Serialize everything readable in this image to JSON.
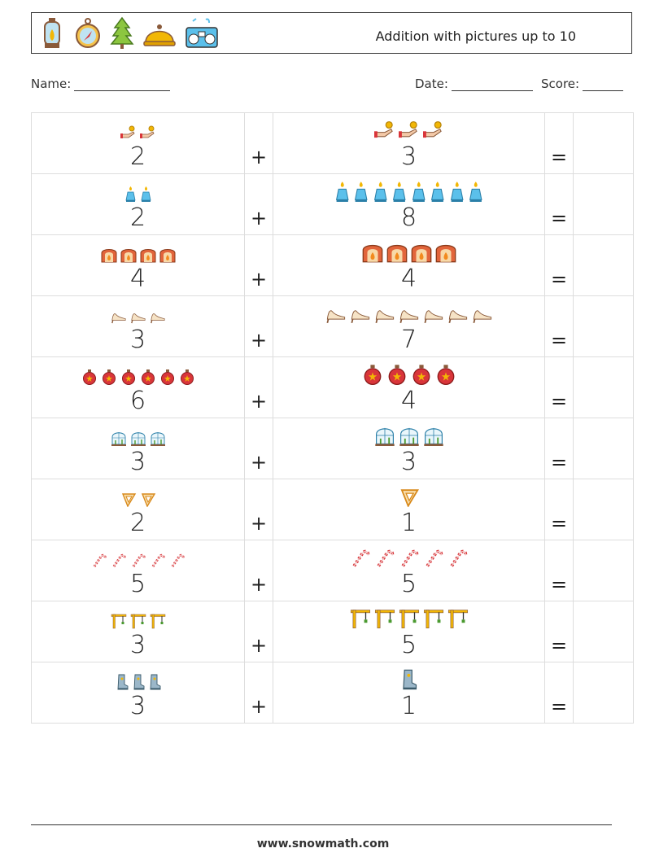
{
  "header": {
    "title": "Addition with pictures up to 10",
    "icons": [
      "lantern-icon",
      "compass-icon",
      "pine-tree-icon",
      "bell-icon",
      "boombox-icon"
    ]
  },
  "fields": {
    "name_label": "Name:",
    "date_label": "Date:",
    "score_label": "Score:"
  },
  "problems": [
    {
      "a": "2",
      "b": "3",
      "picture": "hand-coin-icon",
      "op": "+",
      "eq": "="
    },
    {
      "a": "2",
      "b": "8",
      "picture": "candle-icon",
      "op": "+",
      "eq": "="
    },
    {
      "a": "4",
      "b": "4",
      "picture": "fireplace-icon",
      "op": "+",
      "eq": "="
    },
    {
      "a": "3",
      "b": "7",
      "picture": "high-heel-icon",
      "op": "+",
      "eq": "="
    },
    {
      "a": "6",
      "b": "4",
      "picture": "ornament-ball-icon",
      "op": "+",
      "eq": "="
    },
    {
      "a": "3",
      "b": "3",
      "picture": "greenhouse-icon",
      "op": "+",
      "eq": "="
    },
    {
      "a": "2",
      "b": "1",
      "picture": "protractor-icon",
      "op": "+",
      "eq": "="
    },
    {
      "a": "5",
      "b": "5",
      "picture": "candy-cane-icon",
      "op": "+",
      "eq": "="
    },
    {
      "a": "3",
      "b": "5",
      "picture": "crane-icon",
      "op": "+",
      "eq": "="
    },
    {
      "a": "3",
      "b": "1",
      "picture": "boot-icon",
      "op": "+",
      "eq": "="
    }
  ],
  "footer": {
    "url": "www.snowmath.com"
  },
  "colors": {
    "candle": "#5bc0eb",
    "fireplace": "#e2653b",
    "ornament": "#d9353a",
    "candy": "#d9353a",
    "crane": "#f2b705",
    "boot": "#9bb7c9"
  }
}
